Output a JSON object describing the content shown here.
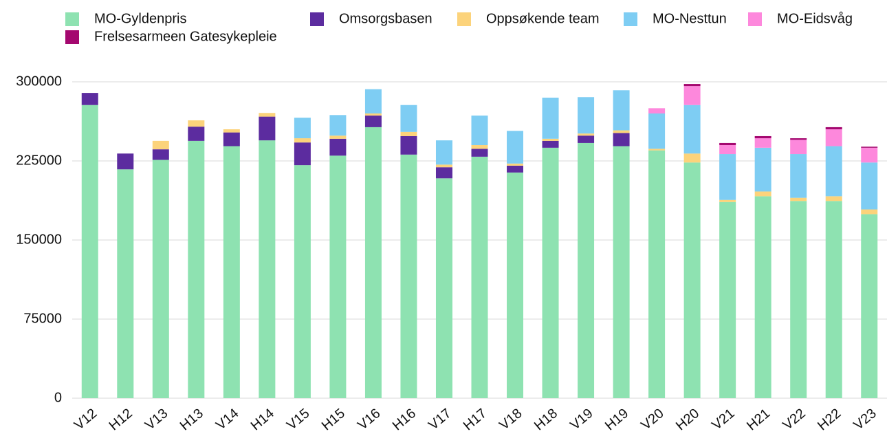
{
  "chart_data": {
    "type": "stacked_bar",
    "categories": [
      "V12",
      "H12",
      "V13",
      "H13",
      "V14",
      "H14",
      "V15",
      "H15",
      "V16",
      "H16",
      "V17",
      "H17",
      "V18",
      "H18",
      "V19",
      "H19",
      "V20",
      "H20",
      "V21",
      "H21",
      "V22",
      "H22",
      "V23"
    ],
    "series": [
      {
        "name": "MO-Gyldenpris",
        "color": "#8ee2b1",
        "values": [
          278000,
          217000,
          226000,
          244000,
          239000,
          244500,
          221000,
          230000,
          257000,
          231000,
          208500,
          229000,
          214000,
          237500,
          242000,
          239000,
          235000,
          223500,
          186000,
          191500,
          187000,
          187000,
          174500
        ]
      },
      {
        "name": "Omsorgsbasen",
        "color": "#5c2c9f",
        "values": [
          11500,
          15000,
          10000,
          13500,
          13000,
          22500,
          21500,
          16000,
          11000,
          17500,
          10500,
          7500,
          6500,
          6500,
          7000,
          12500,
          0,
          0,
          0,
          0,
          0,
          0,
          0
        ]
      },
      {
        "name": "Oppsøkende team",
        "color": "#fcd37b",
        "values": [
          0,
          0,
          8000,
          6000,
          3000,
          3500,
          4000,
          3000,
          2000,
          4000,
          2500,
          3500,
          2000,
          2000,
          2000,
          2500,
          1500,
          8500,
          2000,
          4500,
          3000,
          4500,
          4500
        ]
      },
      {
        "name": "MO-Nesttun",
        "color": "#7ecdf3",
        "values": [
          0,
          0,
          0,
          0,
          0,
          0,
          19500,
          19500,
          23000,
          25500,
          23000,
          28000,
          31000,
          39000,
          34500,
          38000,
          33500,
          46000,
          43500,
          41500,
          41500,
          47500,
          44500
        ]
      },
      {
        "name": "MO-Eidsvåg",
        "color": "#fd88dc",
        "values": [
          0,
          0,
          0,
          0,
          0,
          0,
          0,
          0,
          0,
          0,
          0,
          0,
          0,
          0,
          0,
          0,
          5000,
          18000,
          8500,
          9000,
          13500,
          16000,
          14000
        ]
      },
      {
        "name": "Frelsesarmeen Gatesykepleie",
        "color": "#a4086f",
        "values": [
          0,
          0,
          0,
          0,
          0,
          0,
          0,
          0,
          0,
          0,
          0,
          0,
          0,
          0,
          0,
          0,
          0,
          2000,
          2000,
          2000,
          1500,
          2000,
          1000
        ]
      }
    ],
    "ylim": [
      0,
      300000
    ],
    "yticks": [
      0,
      75000,
      150000,
      225000,
      300000
    ],
    "grid": true
  }
}
